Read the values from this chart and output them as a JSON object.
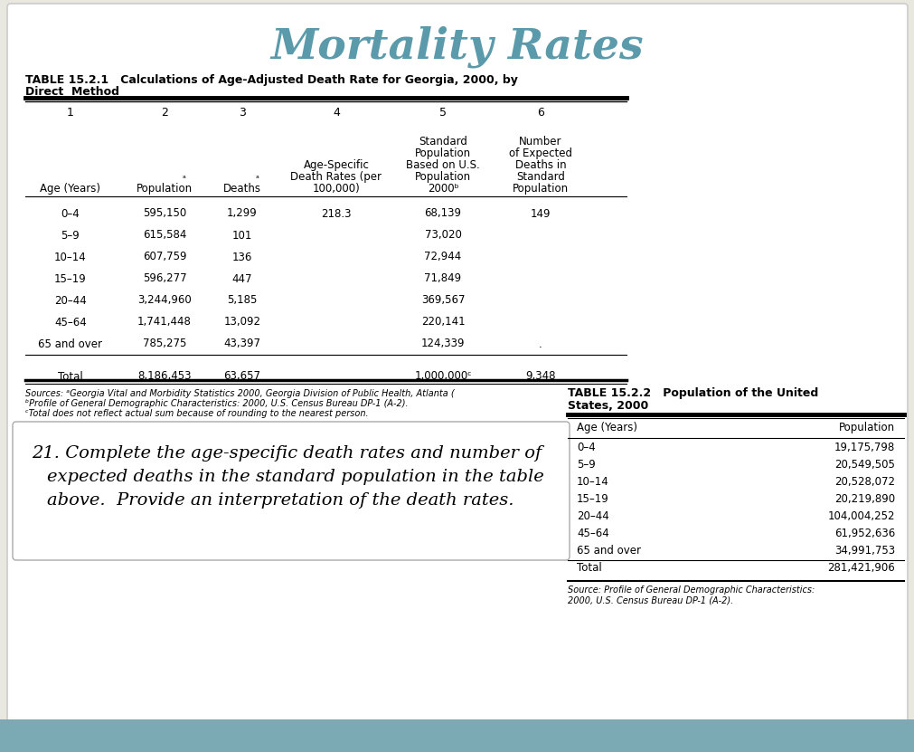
{
  "title": "Mortality Rates",
  "title_color": "#5b9aaa",
  "bg_color": "#e8e8e0",
  "white_color": "#ffffff",
  "table1_title_line1": "TABLE 15.2.1   Calculations of Age-Adjusted Death Rate for Georgia, 2000, by",
  "table1_title_line2": "Direct  Method",
  "col_headers_nums": [
    "1",
    "2",
    "3",
    "4",
    "5",
    "6"
  ],
  "data_rows": [
    [
      "0–4",
      "595,150",
      "1,299",
      "218.3",
      "68,139",
      "149"
    ],
    [
      "5–9",
      "615,584",
      "101",
      "",
      "73,020",
      ""
    ],
    [
      "10–14",
      "607,759",
      "136",
      "",
      "72,944",
      ""
    ],
    [
      "15–19",
      "596,277",
      "447",
      "",
      "71,849",
      ""
    ],
    [
      "20–44",
      "3,244,960",
      "5,185",
      "",
      "369,567",
      ""
    ],
    [
      "45–64",
      "1,741,448",
      "13,092",
      "",
      "220,141",
      ""
    ],
    [
      "65 and over",
      "785,275",
      "43,397",
      "",
      "124,339",
      "."
    ]
  ],
  "total_row": [
    "Total",
    "8,186,453",
    "63,657",
    "",
    "1,000,000ᶜ",
    "9,348"
  ],
  "footnote1": "Sources: ᵃGeorgia Vital and Morbidity Statistics 2000, Georgia Division of Public Health, Atlanta (",
  "footnote2": "ᵇProfile of General Demographic Characteristics: 2000, U.S. Census Bureau DP-1 (A-2).",
  "footnote3": "ᶜTotal does not reflect actual sum because of rounding to the nearest person.",
  "question_line1": "21. Complete the age-specific death rates and number of",
  "question_line2": "expected deaths in the standard population in the table",
  "question_line3": "above.  Provide an interpretation of the death rates.",
  "table2_title1": "TABLE 15.2.2   Population of the United",
  "table2_title2": "States, 2000",
  "table2_col1": [
    "Age (Years)",
    "0–4",
    "5–9",
    "10–14",
    "15–19",
    "20–44",
    "45–64",
    "65 and over",
    "Total"
  ],
  "table2_col2": [
    "Population",
    "19,175,798",
    "20,549,505",
    "20,528,072",
    "20,219,890",
    "104,004,252",
    "61,952,636",
    "34,991,753",
    "281,421,906"
  ],
  "table2_source1": "Source: Profile of General Demographic Characteristics:",
  "table2_source2": "2000, U.S. Census Bureau DP-1 (A-2).",
  "teal_bar_color": "#7baab5"
}
